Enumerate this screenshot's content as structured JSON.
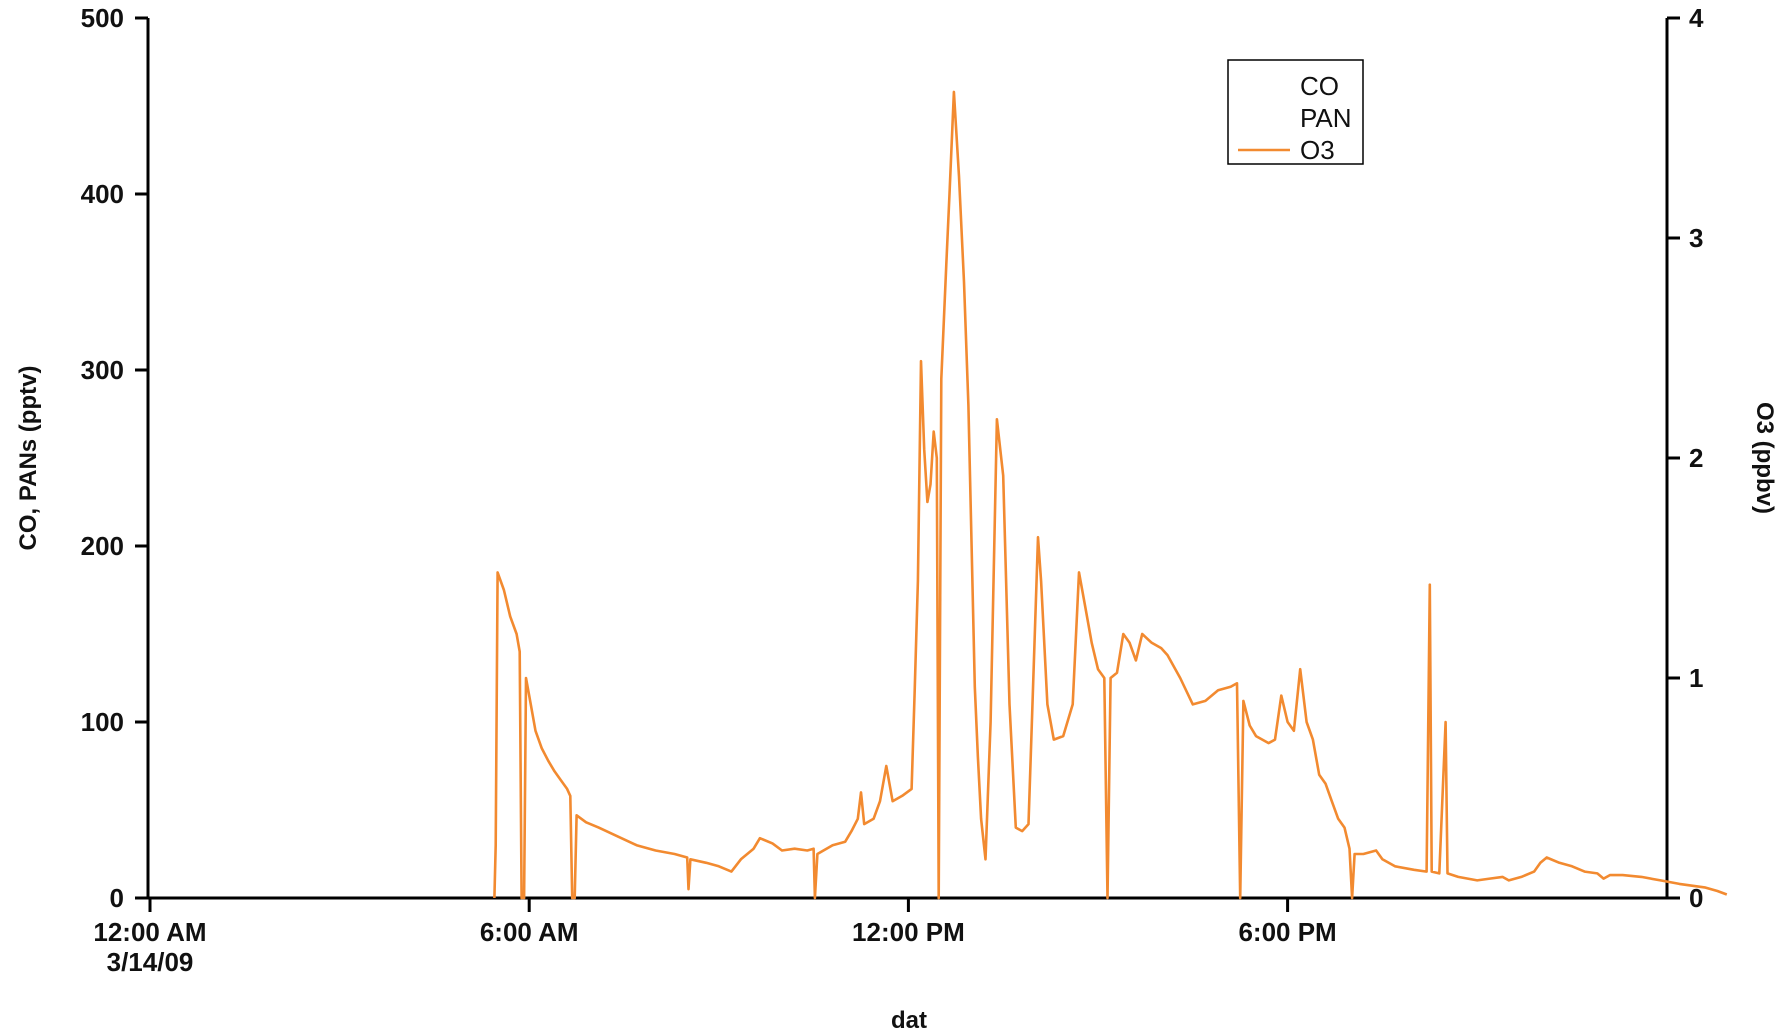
{
  "chart_data": {
    "type": "line",
    "title": "",
    "xlabel": "dat",
    "ylabel_left": "CO, PANs (pptv)",
    "ylabel_right": "O3 (ppbv)",
    "x_unit": "hours since 12:00 AM 3/14/09",
    "x_range": [
      0,
      24
    ],
    "x_ticks": [
      {
        "value": 0,
        "label": "12:00 AM",
        "sublabel": "3/14/09"
      },
      {
        "value": 6,
        "label": "6:00 AM",
        "sublabel": ""
      },
      {
        "value": 12,
        "label": "12:00 PM",
        "sublabel": ""
      },
      {
        "value": 18,
        "label": "6:00 PM",
        "sublabel": ""
      }
    ],
    "ylim_left": [
      0,
      500
    ],
    "yticks_left": [
      0,
      100,
      200,
      300,
      400,
      500
    ],
    "ylim_right": [
      0,
      4
    ],
    "yticks_right": [
      0,
      1,
      2,
      3,
      4
    ],
    "grid": false,
    "legend": {
      "position": "top-right",
      "entries": [
        {
          "name": "CO",
          "color": null
        },
        {
          "name": "PAN",
          "color": null
        },
        {
          "name": "O3",
          "color": "#f28a30"
        }
      ]
    },
    "series": [
      {
        "name": "CO",
        "axis": "left",
        "color": null,
        "points": []
      },
      {
        "name": "PAN",
        "axis": "left",
        "color": null,
        "points": []
      },
      {
        "name": "O3",
        "axis": "left",
        "color": "#f28a30",
        "points": [
          [
            5.45,
            0
          ],
          [
            5.47,
            30
          ],
          [
            5.5,
            185
          ],
          [
            5.6,
            175
          ],
          [
            5.7,
            160
          ],
          [
            5.8,
            150
          ],
          [
            5.85,
            140
          ],
          [
            5.88,
            0
          ],
          [
            5.92,
            0
          ],
          [
            5.95,
            125
          ],
          [
            6.0,
            115
          ],
          [
            6.1,
            95
          ],
          [
            6.2,
            85
          ],
          [
            6.3,
            78
          ],
          [
            6.4,
            72
          ],
          [
            6.5,
            67
          ],
          [
            6.6,
            62
          ],
          [
            6.65,
            58
          ],
          [
            6.68,
            0
          ],
          [
            6.72,
            0
          ],
          [
            6.75,
            47
          ],
          [
            6.9,
            43
          ],
          [
            7.1,
            40
          ],
          [
            7.4,
            35
          ],
          [
            7.7,
            30
          ],
          [
            8.0,
            27
          ],
          [
            8.3,
            25
          ],
          [
            8.5,
            23
          ],
          [
            8.52,
            5
          ],
          [
            8.55,
            22
          ],
          [
            8.8,
            20
          ],
          [
            9.0,
            18
          ],
          [
            9.2,
            15
          ],
          [
            9.35,
            22
          ],
          [
            9.55,
            28
          ],
          [
            9.65,
            34
          ],
          [
            9.85,
            31
          ],
          [
            10.0,
            27
          ],
          [
            10.2,
            28
          ],
          [
            10.4,
            27
          ],
          [
            10.5,
            28
          ],
          [
            10.52,
            0
          ],
          [
            10.56,
            25
          ],
          [
            10.8,
            30
          ],
          [
            11.0,
            32
          ],
          [
            11.1,
            38
          ],
          [
            11.2,
            45
          ],
          [
            11.25,
            60
          ],
          [
            11.3,
            42
          ],
          [
            11.45,
            45
          ],
          [
            11.55,
            55
          ],
          [
            11.65,
            75
          ],
          [
            11.75,
            55
          ],
          [
            11.9,
            58
          ],
          [
            12.05,
            62
          ],
          [
            12.1,
            118
          ],
          [
            12.15,
            180
          ],
          [
            12.2,
            305
          ],
          [
            12.25,
            255
          ],
          [
            12.3,
            225
          ],
          [
            12.35,
            235
          ],
          [
            12.4,
            265
          ],
          [
            12.45,
            250
          ],
          [
            12.48,
            0
          ],
          [
            12.52,
            295
          ],
          [
            12.6,
            360
          ],
          [
            12.65,
            400
          ],
          [
            12.72,
            458
          ],
          [
            12.8,
            410
          ],
          [
            12.88,
            350
          ],
          [
            12.95,
            280
          ],
          [
            13.0,
            200
          ],
          [
            13.05,
            120
          ],
          [
            13.1,
            80
          ],
          [
            13.15,
            45
          ],
          [
            13.22,
            22
          ],
          [
            13.3,
            100
          ],
          [
            13.4,
            272
          ],
          [
            13.5,
            240
          ],
          [
            13.6,
            110
          ],
          [
            13.7,
            40
          ],
          [
            13.8,
            38
          ],
          [
            13.9,
            42
          ],
          [
            14.0,
            150
          ],
          [
            14.05,
            205
          ],
          [
            14.1,
            180
          ],
          [
            14.2,
            110
          ],
          [
            14.3,
            90
          ],
          [
            14.45,
            92
          ],
          [
            14.6,
            110
          ],
          [
            14.7,
            185
          ],
          [
            14.8,
            165
          ],
          [
            14.9,
            145
          ],
          [
            15.0,
            130
          ],
          [
            15.1,
            125
          ],
          [
            15.15,
            0
          ],
          [
            15.2,
            125
          ],
          [
            15.3,
            128
          ],
          [
            15.4,
            150
          ],
          [
            15.5,
            145
          ],
          [
            15.6,
            135
          ],
          [
            15.7,
            150
          ],
          [
            15.85,
            145
          ],
          [
            16.0,
            142
          ],
          [
            16.1,
            138
          ],
          [
            16.3,
            125
          ],
          [
            16.5,
            110
          ],
          [
            16.7,
            112
          ],
          [
            16.9,
            118
          ],
          [
            17.1,
            120
          ],
          [
            17.2,
            122
          ],
          [
            17.25,
            0
          ],
          [
            17.3,
            112
          ],
          [
            17.4,
            98
          ],
          [
            17.5,
            92
          ],
          [
            17.6,
            90
          ],
          [
            17.7,
            88
          ],
          [
            17.8,
            90
          ],
          [
            17.9,
            115
          ],
          [
            18.0,
            100
          ],
          [
            18.1,
            95
          ],
          [
            18.2,
            130
          ],
          [
            18.3,
            100
          ],
          [
            18.4,
            90
          ],
          [
            18.5,
            70
          ],
          [
            18.6,
            65
          ],
          [
            18.7,
            55
          ],
          [
            18.8,
            45
          ],
          [
            18.9,
            40
          ],
          [
            18.98,
            28
          ],
          [
            19.02,
            0
          ],
          [
            19.06,
            25
          ],
          [
            19.2,
            25
          ],
          [
            19.4,
            27
          ],
          [
            19.5,
            22
          ],
          [
            19.7,
            18
          ],
          [
            20.0,
            16
          ],
          [
            20.2,
            15
          ],
          [
            20.25,
            178
          ],
          [
            20.28,
            15
          ],
          [
            20.4,
            14
          ],
          [
            20.5,
            100
          ],
          [
            20.53,
            14
          ],
          [
            20.7,
            12
          ],
          [
            21.0,
            10
          ],
          [
            21.2,
            11
          ],
          [
            21.4,
            12
          ],
          [
            21.5,
            10
          ],
          [
            21.7,
            12
          ],
          [
            21.9,
            15
          ],
          [
            22.0,
            20
          ],
          [
            22.1,
            23
          ],
          [
            22.3,
            20
          ],
          [
            22.5,
            18
          ],
          [
            22.7,
            15
          ],
          [
            22.9,
            14
          ],
          [
            23.0,
            11
          ],
          [
            23.1,
            13
          ],
          [
            23.3,
            13
          ],
          [
            23.6,
            12
          ],
          [
            23.9,
            10
          ],
          [
            24.2,
            8
          ],
          [
            24.6,
            6
          ],
          [
            24.8,
            4
          ],
          [
            24.95,
            2
          ]
        ]
      }
    ]
  }
}
